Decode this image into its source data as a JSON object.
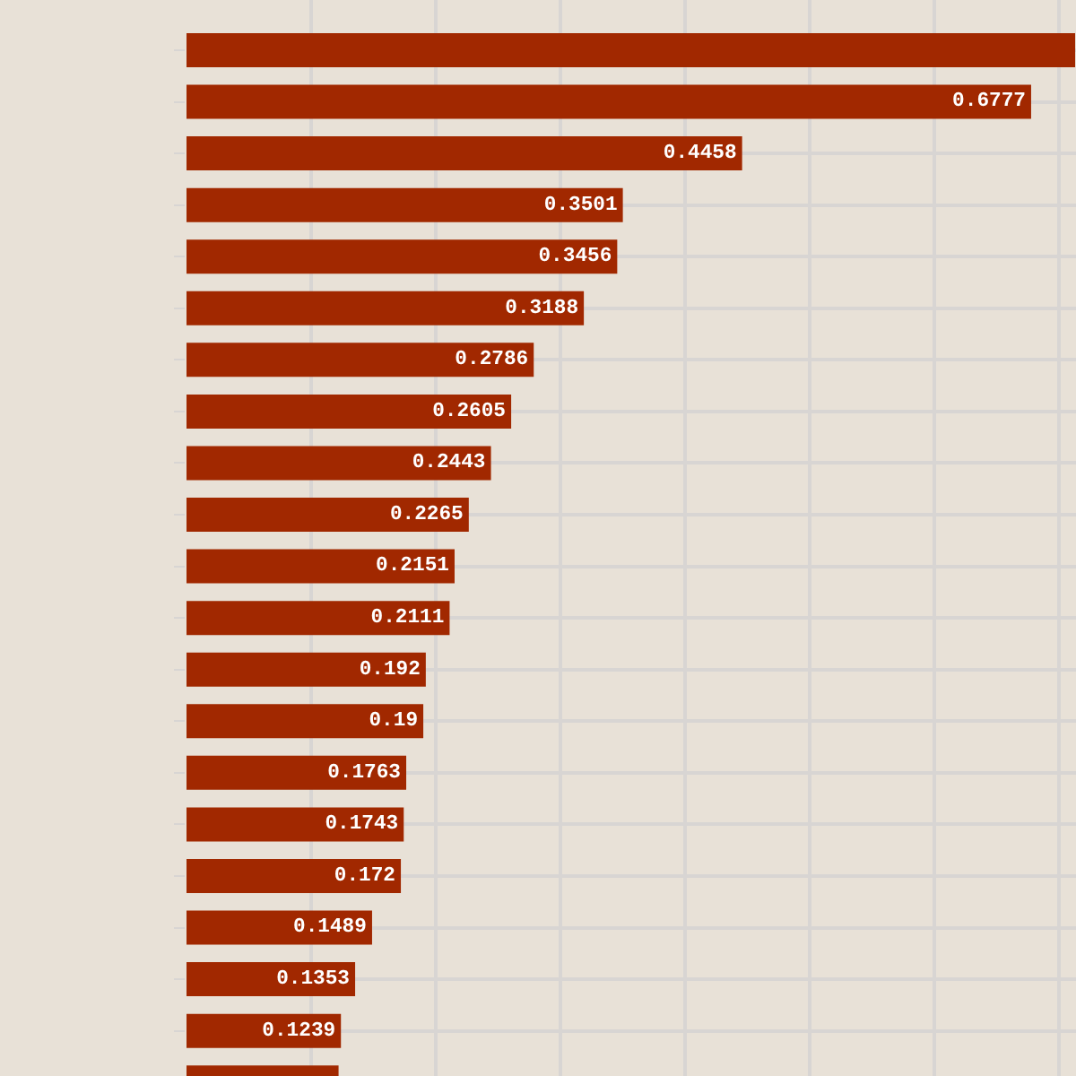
{
  "chart_data": {
    "type": "bar",
    "orientation": "horizontal",
    "categories": [
      null,
      null,
      null,
      null,
      null,
      null,
      null,
      null,
      null,
      null,
      null,
      null,
      null,
      null,
      null,
      null,
      null,
      null,
      null,
      null,
      null
    ],
    "values": [
      0.713,
      0.6777,
      0.4458,
      0.3501,
      0.3456,
      0.3188,
      0.2786,
      0.2605,
      0.2443,
      0.2265,
      0.2151,
      0.2111,
      0.192,
      0.19,
      0.1763,
      0.1743,
      0.172,
      0.1489,
      0.1353,
      0.1239,
      0.122
    ],
    "value_labels": [
      null,
      "0.6777",
      "0.4458",
      "0.3501",
      "0.3456",
      "0.3188",
      "0.2786",
      "0.2605",
      "0.2443",
      "0.2265",
      "0.2151",
      "0.2111",
      "0.192",
      "0.19",
      "0.1763",
      "0.1743",
      "0.172",
      "0.1489",
      "0.1353",
      "0.1239",
      null
    ],
    "color": "#a12800",
    "xlim": [
      0,
      0.7137
    ],
    "grid": true,
    "tick_labels": false,
    "legend": false
  }
}
